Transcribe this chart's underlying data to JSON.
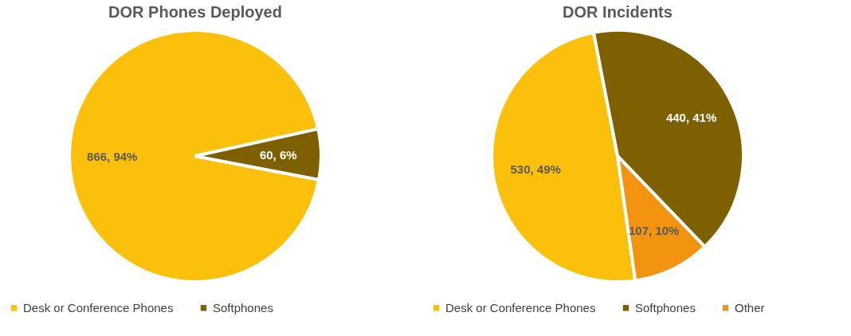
{
  "chart_data": [
    {
      "type": "pie",
      "title": "DOR Phones Deployed",
      "categories": [
        "Desk or Conference Phones",
        "Softphones"
      ],
      "values": [
        866,
        60
      ],
      "colors": [
        "#fbc00b",
        "#7f6000"
      ],
      "value_labels": [
        "866, 94%",
        "60, 6%"
      ],
      "legend": "bottom"
    },
    {
      "type": "pie",
      "title": "DOR Incidents",
      "categories": [
        "Desk or Conference Phones",
        "Softphones",
        "Other"
      ],
      "values": [
        530,
        440,
        107
      ],
      "colors": [
        "#fbc00b",
        "#7f6000",
        "#f39410"
      ],
      "value_labels": [
        "530, 49%",
        "440, 41%",
        "107, 10%"
      ],
      "legend": "bottom"
    }
  ]
}
